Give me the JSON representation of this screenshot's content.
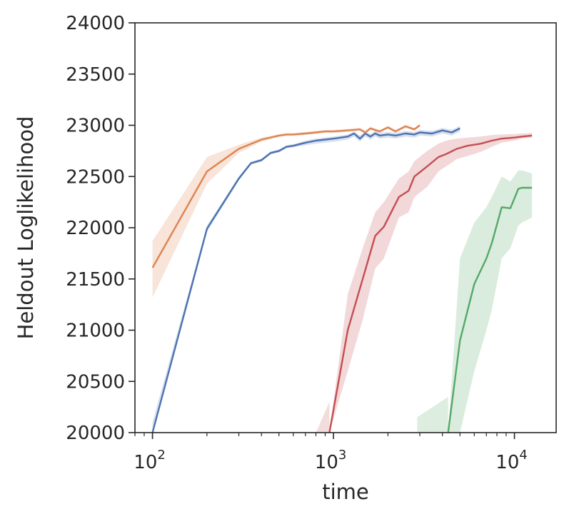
{
  "chart_data": {
    "type": "line",
    "xlabel": "time",
    "ylabel": "Heldout Loglikelihood",
    "xscale": "log",
    "xlim": [
      80,
      17000
    ],
    "ylim": [
      20000,
      24000
    ],
    "yticks": [
      {
        "value": 20000,
        "label": "20000"
      },
      {
        "value": 20500,
        "label": "20500"
      },
      {
        "value": 21000,
        "label": "21000"
      },
      {
        "value": 21500,
        "label": "21500"
      },
      {
        "value": 22000,
        "label": "22000"
      },
      {
        "value": 22500,
        "label": "22500"
      },
      {
        "value": 23000,
        "label": "23000"
      },
      {
        "value": 23500,
        "label": "23500"
      },
      {
        "value": 24000,
        "label": "24000"
      }
    ],
    "xticks": [
      {
        "value": 100,
        "base": "10",
        "exp": "2"
      },
      {
        "value": 1000,
        "base": "10",
        "exp": "3"
      },
      {
        "value": 10000,
        "base": "10",
        "exp": "4"
      }
    ],
    "grid": false,
    "legend": "none",
    "series": [
      {
        "color": "#4c72b0",
        "x": [
          100,
          200,
          300,
          350,
          400,
          450,
          500,
          550,
          600,
          700,
          800,
          1000,
          1200,
          1300,
          1400,
          1500,
          1600,
          1700,
          1800,
          2000,
          2200,
          2500,
          2800,
          3000,
          3500,
          4000,
          4500,
          5000
        ],
        "y": [
          20000,
          21990,
          22480,
          22630,
          22660,
          22730,
          22750,
          22790,
          22800,
          22830,
          22850,
          22870,
          22890,
          22920,
          22870,
          22920,
          22890,
          22920,
          22900,
          22910,
          22900,
          22920,
          22910,
          22930,
          22920,
          22950,
          22930,
          22970
        ],
        "band_lower": [
          19900,
          21960,
          22460,
          22615,
          22645,
          22715,
          22735,
          22775,
          22785,
          22805,
          22820,
          22840,
          22860,
          22890,
          22840,
          22890,
          22860,
          22890,
          22870,
          22880,
          22870,
          22890,
          22880,
          22900,
          22890,
          22920,
          22900,
          22940
        ],
        "band_upper": [
          20100,
          22020,
          22500,
          22645,
          22675,
          22745,
          22765,
          22805,
          22815,
          22850,
          22870,
          22890,
          22910,
          22940,
          22900,
          22940,
          22915,
          22945,
          22925,
          22935,
          22925,
          22945,
          22935,
          22955,
          22945,
          22975,
          22955,
          22995
        ]
      },
      {
        "color": "#dd8452",
        "x": [
          100,
          200,
          300,
          400,
          500,
          550,
          600,
          700,
          800,
          900,
          1000,
          1200,
          1400,
          1500,
          1600,
          1800,
          2000,
          2200,
          2500,
          2800,
          3000
        ],
        "y": [
          21610,
          22550,
          22770,
          22860,
          22900,
          22910,
          22910,
          22920,
          22930,
          22940,
          22940,
          22950,
          22960,
          22930,
          22970,
          22940,
          22980,
          22940,
          22990,
          22960,
          23000
        ],
        "band_lower": [
          21320,
          22430,
          22730,
          22840,
          22885,
          22895,
          22895,
          22905,
          22915,
          22925,
          22925,
          22935,
          22945,
          22915,
          22955,
          22925,
          22965,
          22925,
          22975,
          22945,
          22985
        ],
        "band_upper": [
          21870,
          22690,
          22810,
          22880,
          22915,
          22925,
          22925,
          22935,
          22945,
          22955,
          22955,
          22965,
          22975,
          22945,
          22985,
          22955,
          22995,
          22955,
          23005,
          22975,
          23015
        ]
      },
      {
        "color": "#c44e52",
        "x": [
          950,
          1200,
          1450,
          1700,
          1900,
          2300,
          2600,
          2800,
          3300,
          3800,
          4200,
          4800,
          5500,
          6500,
          7500,
          8500,
          10000,
          11000,
          12500
        ],
        "y": [
          20000,
          21000,
          21500,
          21920,
          22010,
          22300,
          22360,
          22500,
          22600,
          22690,
          22720,
          22770,
          22800,
          22820,
          22850,
          22870,
          22880,
          22890,
          22900
        ],
        "band_lower": [
          20000,
          20600,
          21100,
          21600,
          21700,
          22100,
          22150,
          22300,
          22400,
          22550,
          22600,
          22670,
          22700,
          22740,
          22790,
          22830,
          22850,
          22870,
          22880
        ],
        "band_upper": [
          20000,
          21350,
          21800,
          22150,
          22250,
          22480,
          22550,
          22650,
          22750,
          22820,
          22850,
          22870,
          22880,
          22890,
          22905,
          22910,
          22915,
          22920,
          22925
        ]
      },
      {
        "color": "#55a868",
        "x": [
          4300,
          5000,
          6000,
          7000,
          7500,
          8500,
          9500,
          10500,
          11000,
          12500
        ],
        "y": [
          20000,
          20900,
          21450,
          21700,
          21850,
          22200,
          22190,
          22380,
          22390,
          22390
        ],
        "band_lower": [
          20000,
          20000,
          20600,
          21000,
          21200,
          21700,
          21800,
          22020,
          22050,
          22100
        ],
        "band_upper": [
          20000,
          21700,
          22050,
          22200,
          22300,
          22500,
          22450,
          22560,
          22560,
          22530
        ]
      }
    ]
  },
  "decor": {
    "green_band_start": {
      "x": [
        2900,
        4300
      ],
      "lower": [
        20000,
        20000
      ],
      "upper": [
        20150,
        20350
      ]
    },
    "red_band_start": {
      "x": [
        800,
        950
      ],
      "lower": [
        20000,
        20000
      ],
      "upper": [
        20000,
        20300
      ]
    }
  }
}
